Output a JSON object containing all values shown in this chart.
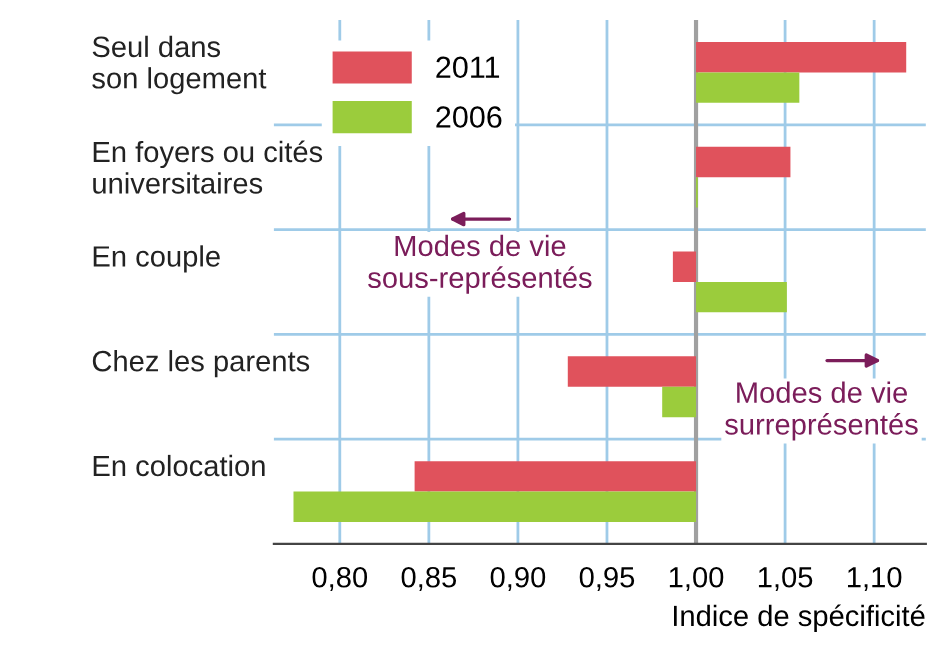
{
  "chart_data": {
    "type": "bar",
    "orientation": "horizontal",
    "xlabel": "Indice de spécificité",
    "categories": [
      "Seul dans\nson logement",
      "En foyers ou cités\nuniversitaires",
      "En couple",
      "Chez les parents",
      "En colocation"
    ],
    "series": [
      {
        "name": "2011",
        "color": "#e0525c",
        "base": [
          1.0,
          1.0,
          1.0,
          1.0,
          1.0
        ],
        "values": [
          0.118,
          0.053,
          -0.013,
          -0.072,
          -0.158
        ]
      },
      {
        "name": "2006",
        "color": "#9bcc3c",
        "base": [
          1.0,
          1.0,
          1.0,
          1.0,
          1.0
        ],
        "values": [
          0.058,
          0.001,
          0.051,
          -0.019,
          -0.226
        ]
      }
    ],
    "xlim": [
      0.763,
      1.129
    ],
    "xticks": [
      {
        "value": 0.8,
        "label": "0,80"
      },
      {
        "value": 0.85,
        "label": "0,85"
      },
      {
        "value": 0.9,
        "label": "0,90"
      },
      {
        "value": 0.95,
        "label": "0,95"
      },
      {
        "value": 1.0,
        "label": "1,00"
      },
      {
        "value": 1.05,
        "label": "1,05"
      },
      {
        "value": 1.1,
        "label": "1,10"
      }
    ],
    "ref_lines": [
      {
        "axis": "x",
        "value": 1.0,
        "color": "#a0a0a0"
      }
    ],
    "annotations": [
      "Modes de vie\nsous-représentés",
      "Modes de vie\nsurreprésentés"
    ],
    "grid": true,
    "legend": "top left"
  }
}
